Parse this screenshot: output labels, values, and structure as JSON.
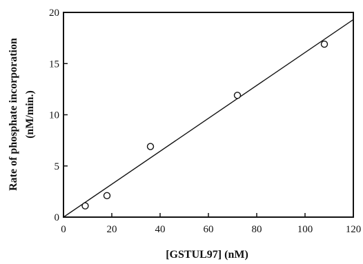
{
  "chart_data": {
    "type": "scatter",
    "title": "",
    "xlabel": "[GSTUL97] (nM)",
    "ylabel_lines": [
      "Rate of phosphate incorporation",
      "(nM/min.)"
    ],
    "xlim": [
      0,
      120
    ],
    "ylim": [
      0,
      20
    ],
    "x_ticks": [
      0,
      20,
      40,
      60,
      80,
      100,
      120
    ],
    "y_ticks": [
      0,
      5,
      10,
      15,
      20
    ],
    "grid": false,
    "legend": "none",
    "points": [
      {
        "x": 9,
        "y": 1.1
      },
      {
        "x": 18,
        "y": 2.1
      },
      {
        "x": 36,
        "y": 6.9
      },
      {
        "x": 72,
        "y": 11.9
      },
      {
        "x": 108,
        "y": 16.9
      }
    ],
    "fit_line": {
      "x": [
        0,
        120
      ],
      "y": [
        0,
        19.3
      ]
    },
    "colors": {
      "ink": "#111111",
      "background": "#ffffff"
    }
  }
}
